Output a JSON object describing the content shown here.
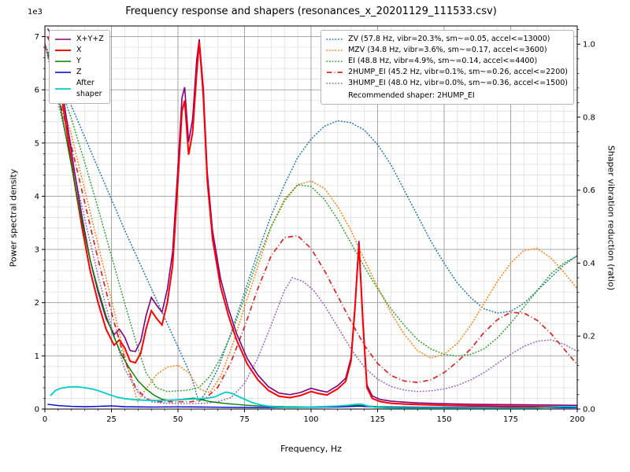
{
  "chart_data": {
    "type": "line",
    "title": "Frequency response and shapers (resonances_x_20201129_111533.csv)",
    "xlabel": "Frequency, Hz",
    "ylabel_left": "Power spectral density",
    "ylabel_right": "Shaper vibration reduction (ratio)",
    "y_left_offset_label": "1e3",
    "y_left_scale": 1000,
    "xlim": [
      0,
      200
    ],
    "ylim_left": [
      0,
      7200
    ],
    "ylim_right": [
      0,
      1.05
    ],
    "x_ticks": [
      0,
      25,
      50,
      75,
      100,
      125,
      150,
      175,
      200
    ],
    "y_left_ticks": [
      0,
      1,
      2,
      3,
      4,
      5,
      6,
      7
    ],
    "y_right_ticks": [
      "0.0",
      "0.2",
      "0.4",
      "0.6",
      "0.8",
      "1.0"
    ],
    "grid": {
      "major": true,
      "minor": true,
      "x_major_step": 25,
      "x_minor_step": 5,
      "y_major_step": 1000,
      "y_minor_step": 200,
      "major_color": "#9b9b9b",
      "minor_color": "#dcdcdc"
    },
    "annotation": "Recommended shaper: 2HUMP_EI",
    "psd_series": [
      {
        "name": "X+Y+Z",
        "color": "#800080",
        "style": "solid",
        "width": 1.6,
        "x": [
          1,
          3,
          5,
          8,
          11,
          14,
          17,
          20,
          23,
          26,
          28,
          30,
          32,
          34,
          36,
          38,
          40,
          42,
          44,
          46,
          48,
          50,
          51.5,
          52.5,
          54,
          55.5,
          57,
          58,
          59.5,
          61,
          63,
          66,
          69,
          72,
          76,
          80,
          84,
          88,
          92,
          96,
          100,
          103,
          106,
          110,
          113,
          115,
          116.5,
          118,
          119.5,
          121,
          123,
          126,
          130,
          135,
          140,
          150,
          160,
          170,
          180,
          190,
          200
        ],
        "y": [
          7150,
          7000,
          6500,
          5500,
          4500,
          3600,
          2800,
          2200,
          1700,
          1400,
          1500,
          1350,
          1100,
          1080,
          1280,
          1750,
          2100,
          1950,
          1820,
          2250,
          2950,
          4550,
          5850,
          6050,
          5020,
          5450,
          6550,
          6950,
          6050,
          4450,
          3350,
          2450,
          1880,
          1420,
          950,
          640,
          420,
          300,
          270,
          310,
          390,
          350,
          320,
          440,
          580,
          960,
          1960,
          3160,
          1660,
          450,
          245,
          180,
          150,
          130,
          115,
          100,
          90,
          85,
          80,
          75,
          70
        ]
      },
      {
        "name": "X",
        "color": "#ff0000",
        "style": "solid",
        "width": 2,
        "x": [
          1,
          3,
          5,
          8,
          11,
          14,
          17,
          20,
          23,
          26,
          28,
          30,
          32,
          34,
          36,
          38,
          40,
          42,
          44,
          46,
          48,
          50,
          51.5,
          52.5,
          54,
          55.5,
          57,
          58,
          59.5,
          61,
          63,
          66,
          69,
          72,
          76,
          80,
          84,
          88,
          92,
          96,
          100,
          103,
          106,
          110,
          113,
          115,
          116.5,
          118,
          119.5,
          121,
          123,
          126,
          130,
          135,
          140,
          150,
          160,
          170,
          180,
          190,
          200
        ],
        "y": [
          7000,
          6800,
          6300,
          5300,
          4300,
          3400,
          2600,
          2000,
          1500,
          1200,
          1300,
          1150,
          900,
          870,
          1050,
          1500,
          1850,
          1700,
          1580,
          2000,
          2700,
          4300,
          5600,
          5800,
          4780,
          5200,
          6300,
          6900,
          5900,
          4300,
          3200,
          2300,
          1750,
          1300,
          850,
          550,
          350,
          240,
          215,
          255,
          330,
          290,
          265,
          380,
          520,
          900,
          1900,
          3100,
          1600,
          400,
          200,
          140,
          110,
          95,
          85,
          70,
          60,
          55,
          50,
          45,
          40
        ]
      },
      {
        "name": "Y",
        "color": "#008000",
        "style": "solid",
        "width": 1.4,
        "x": [
          1,
          3,
          5,
          8,
          11,
          14,
          17,
          20,
          23,
          26,
          29,
          32,
          35,
          38,
          41,
          44,
          47,
          50,
          53,
          56,
          59,
          62,
          66,
          70,
          75,
          80,
          90,
          100,
          110,
          118,
          125,
          140,
          160,
          180,
          200
        ],
        "y": [
          6700,
          6400,
          5900,
          5100,
          4300,
          3500,
          2800,
          2250,
          1750,
          1350,
          1000,
          750,
          530,
          380,
          260,
          185,
          160,
          175,
          190,
          205,
          175,
          140,
          115,
          95,
          75,
          60,
          45,
          40,
          50,
          70,
          45,
          35,
          30,
          28,
          25
        ]
      },
      {
        "name": "Z",
        "color": "#0000cd",
        "style": "solid",
        "width": 1.4,
        "x": [
          1,
          5,
          10,
          15,
          20,
          25,
          30,
          40,
          50,
          60,
          70,
          80,
          90,
          100,
          110,
          118,
          125,
          140,
          160,
          180,
          200
        ],
        "y": [
          90,
          65,
          50,
          45,
          50,
          60,
          45,
          38,
          42,
          38,
          32,
          30,
          30,
          32,
          40,
          55,
          35,
          30,
          28,
          26,
          25
        ]
      },
      {
        "name": "After\nshaper",
        "color": "#00cccc",
        "style": "solid",
        "width": 1.8,
        "x": [
          2,
          4,
          6,
          9,
          12,
          15,
          18,
          21,
          24,
          27,
          30,
          34,
          38,
          42,
          46,
          50,
          54,
          58,
          61,
          64,
          66,
          68,
          70,
          72,
          75,
          78,
          81,
          85,
          90,
          95,
          100,
          105,
          110,
          114,
          117,
          119,
          121,
          124,
          128,
          135,
          145,
          155,
          165,
          175,
          185,
          192,
          196,
          200
        ],
        "y": [
          250,
          350,
          390,
          415,
          420,
          400,
          375,
          330,
          275,
          225,
          195,
          175,
          165,
          160,
          165,
          175,
          185,
          195,
          205,
          230,
          280,
          320,
          300,
          255,
          185,
          120,
          80,
          45,
          32,
          33,
          40,
          48,
          58,
          72,
          90,
          95,
          60,
          35,
          25,
          20,
          20,
          18,
          18,
          16,
          20,
          38,
          48,
          40
        ]
      }
    ],
    "shaper_series": [
      {
        "name": "ZV",
        "legend": "ZV (57.8 Hz, vibr=20.3%, sm~=0.05, accel<=13000)",
        "color": "#1f77b4",
        "style": "dotted",
        "width": 1.6,
        "x": [
          0,
          5,
          10,
          15,
          20,
          25,
          30,
          35,
          40,
          45,
          50,
          55,
          57.8,
          60,
          65,
          70,
          75,
          80,
          85,
          90,
          95,
          100,
          105,
          110,
          115,
          120,
          125,
          130,
          135,
          140,
          145,
          150,
          155,
          160,
          165,
          170,
          175,
          180,
          185,
          190,
          195,
          200
        ],
        "y": [
          1.0,
          0.92,
          0.83,
          0.745,
          0.66,
          0.575,
          0.49,
          0.41,
          0.33,
          0.25,
          0.17,
          0.09,
          0.02,
          0.04,
          0.11,
          0.21,
          0.32,
          0.43,
          0.53,
          0.615,
          0.69,
          0.74,
          0.775,
          0.79,
          0.785,
          0.765,
          0.725,
          0.67,
          0.6,
          0.53,
          0.46,
          0.4,
          0.345,
          0.305,
          0.275,
          0.263,
          0.268,
          0.29,
          0.325,
          0.36,
          0.395,
          0.42
        ]
      },
      {
        "name": "MZV",
        "legend": "MZV (34.8 Hz, vibr=3.6%, sm~=0.17, accel<=3600)",
        "color": "#ff7f0e",
        "style": "dotted",
        "width": 1.6,
        "x": [
          0,
          5,
          10,
          15,
          20,
          25,
          30,
          34.8,
          38,
          42,
          46,
          50,
          54,
          58,
          62,
          66,
          70,
          75,
          80,
          85,
          90,
          95,
          100,
          105,
          110,
          115,
          120,
          125,
          130,
          135,
          140,
          145,
          150,
          155,
          160,
          165,
          170,
          175,
          180,
          185,
          190,
          195,
          200
        ],
        "y": [
          1.0,
          0.875,
          0.75,
          0.6,
          0.45,
          0.3,
          0.145,
          0.02,
          0.055,
          0.095,
          0.115,
          0.12,
          0.1,
          0.055,
          0.045,
          0.09,
          0.165,
          0.28,
          0.39,
          0.5,
          0.575,
          0.615,
          0.625,
          0.605,
          0.555,
          0.49,
          0.41,
          0.335,
          0.265,
          0.205,
          0.16,
          0.14,
          0.15,
          0.18,
          0.23,
          0.29,
          0.35,
          0.4,
          0.435,
          0.44,
          0.415,
          0.375,
          0.33
        ]
      },
      {
        "name": "EI",
        "legend": "EI (48.8 Hz, vibr=4.9%, sm~=0.14, accel<=4400)",
        "color": "#2ca02c",
        "style": "dotted",
        "width": 1.6,
        "x": [
          0,
          5,
          10,
          15,
          20,
          25,
          30,
          35,
          38,
          42,
          46,
          50,
          54,
          58,
          62,
          66,
          70,
          75,
          80,
          85,
          90,
          95,
          100,
          105,
          110,
          115,
          120,
          125,
          130,
          135,
          140,
          145,
          150,
          155,
          160,
          165,
          170,
          175,
          180,
          185,
          190,
          195,
          200
        ],
        "y": [
          1.0,
          0.9,
          0.795,
          0.675,
          0.55,
          0.42,
          0.29,
          0.165,
          0.1,
          0.058,
          0.048,
          0.05,
          0.052,
          0.06,
          0.09,
          0.14,
          0.205,
          0.305,
          0.41,
          0.5,
          0.57,
          0.615,
          0.61,
          0.575,
          0.52,
          0.455,
          0.39,
          0.33,
          0.275,
          0.23,
          0.19,
          0.165,
          0.15,
          0.145,
          0.15,
          0.165,
          0.195,
          0.235,
          0.28,
          0.325,
          0.37,
          0.4,
          0.42
        ]
      },
      {
        "name": "2HUMP_EI",
        "legend": "2HUMP_EI (45.2 Hz, vibr=0.1%, sm~=0.26, accel<=2200)",
        "color": "#d62728",
        "style": "dashdot",
        "width": 1.7,
        "x": [
          0,
          5,
          10,
          15,
          20,
          25,
          30,
          34,
          38,
          42,
          46,
          50,
          55,
          60,
          65,
          70,
          75,
          80,
          85,
          90,
          95,
          100,
          105,
          110,
          115,
          120,
          125,
          130,
          135,
          140,
          145,
          150,
          155,
          160,
          165,
          170,
          175,
          180,
          185,
          190,
          195,
          200
        ],
        "y": [
          1.0,
          0.86,
          0.72,
          0.565,
          0.41,
          0.265,
          0.135,
          0.06,
          0.028,
          0.02,
          0.02,
          0.02,
          0.02,
          0.027,
          0.06,
          0.13,
          0.225,
          0.33,
          0.42,
          0.47,
          0.475,
          0.44,
          0.38,
          0.31,
          0.24,
          0.175,
          0.125,
          0.092,
          0.077,
          0.073,
          0.08,
          0.1,
          0.13,
          0.165,
          0.21,
          0.245,
          0.265,
          0.263,
          0.243,
          0.208,
          0.165,
          0.122
        ]
      },
      {
        "name": "3HUMP_EI",
        "legend": "3HUMP_EI (48.0 Hz, vibr=0.0%, sm~=0.36, accel<=1500)",
        "color": "#9467bd",
        "style": "dotted",
        "width": 1.6,
        "x": [
          0,
          5,
          10,
          15,
          20,
          25,
          30,
          35,
          40,
          45,
          50,
          55,
          60,
          65,
          70,
          75,
          80,
          85,
          90,
          93,
          97,
          101,
          105,
          110,
          115,
          120,
          125,
          130,
          135,
          140,
          145,
          150,
          155,
          160,
          165,
          170,
          175,
          180,
          185,
          190,
          195,
          200
        ],
        "y": [
          1.0,
          0.84,
          0.68,
          0.52,
          0.365,
          0.225,
          0.11,
          0.045,
          0.02,
          0.016,
          0.015,
          0.015,
          0.016,
          0.02,
          0.032,
          0.07,
          0.14,
          0.23,
          0.325,
          0.36,
          0.35,
          0.325,
          0.285,
          0.225,
          0.165,
          0.115,
          0.082,
          0.062,
          0.052,
          0.048,
          0.05,
          0.055,
          0.065,
          0.08,
          0.1,
          0.125,
          0.15,
          0.172,
          0.186,
          0.19,
          0.178,
          0.158
        ]
      }
    ]
  }
}
